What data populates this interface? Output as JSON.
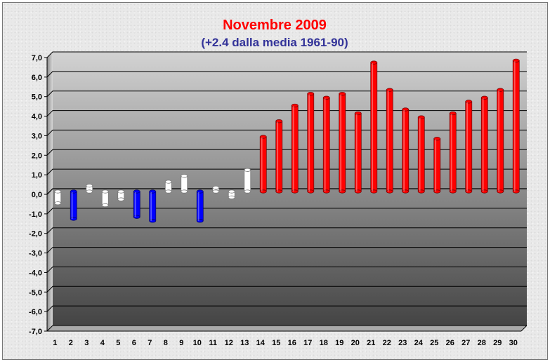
{
  "chart_data": {
    "type": "bar",
    "title": "Novembre 2009",
    "subtitle": "(+2.4 dalla media 1961-90)",
    "xlabel": "",
    "ylabel": "",
    "categories": [
      "1",
      "2",
      "3",
      "4",
      "5",
      "6",
      "7",
      "8",
      "9",
      "10",
      "11",
      "12",
      "13",
      "14",
      "15",
      "16",
      "17",
      "18",
      "19",
      "20",
      "21",
      "22",
      "23",
      "24",
      "25",
      "26",
      "27",
      "28",
      "29",
      "30"
    ],
    "values": [
      -0.6,
      -1.4,
      0.3,
      -0.7,
      -0.4,
      -1.3,
      -1.5,
      0.5,
      0.8,
      -1.5,
      0.2,
      -0.3,
      1.1,
      2.8,
      3.6,
      4.4,
      5.0,
      4.8,
      5.0,
      4.0,
      6.6,
      5.2,
      4.2,
      3.8,
      2.7,
      4.0,
      4.6,
      4.8,
      5.2,
      6.7
    ],
    "ylim": [
      -7,
      7
    ],
    "yticks": [
      "7,0",
      "6,0",
      "5,0",
      "4,0",
      "3,0",
      "2,0",
      "1,0",
      "0,0",
      "-1,0",
      "-2,0",
      "-3,0",
      "-4,0",
      "-5,0",
      "-6,0",
      "-7,0"
    ],
    "grid": true,
    "legend": "none",
    "colors": {
      "title": "#ff0000",
      "subtitle": "#333399",
      "warm": "#ff0000",
      "cold": "#0000ff",
      "normal": "#ffffff"
    }
  }
}
